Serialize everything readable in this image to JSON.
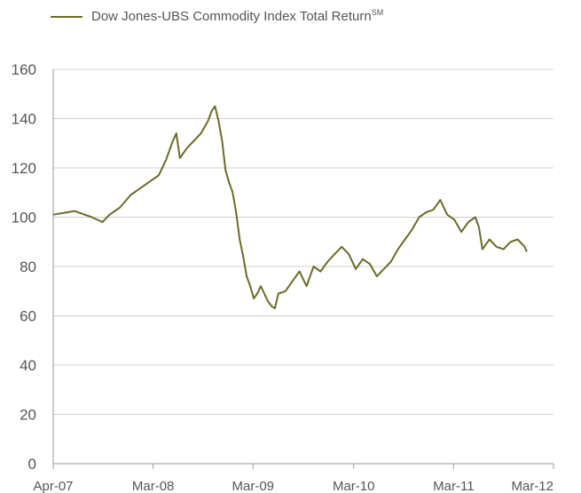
{
  "chart_data": {
    "type": "line",
    "legend": {
      "placement": "top-left",
      "label": "Dow Jones-UBS Commodity Index Total Return",
      "label_superscript": "SM"
    },
    "series": [
      {
        "name": "Dow Jones-UBS Commodity Index Total Return",
        "color": "#6b6b2b",
        "points": [
          [
            0.0,
            101
          ],
          [
            0.1,
            101.5
          ],
          [
            0.2,
            102
          ],
          [
            0.3,
            102.5
          ],
          [
            0.4,
            101.5
          ],
          [
            0.55,
            100
          ],
          [
            0.7,
            98
          ],
          [
            0.8,
            101
          ],
          [
            0.95,
            104
          ],
          [
            1.1,
            109
          ],
          [
            1.3,
            113
          ],
          [
            1.5,
            117
          ],
          [
            1.6,
            123
          ],
          [
            1.7,
            131
          ],
          [
            1.75,
            134
          ],
          [
            1.8,
            124
          ],
          [
            1.9,
            128
          ],
          [
            2.0,
            131
          ],
          [
            2.1,
            134
          ],
          [
            2.2,
            139
          ],
          [
            2.25,
            143
          ],
          [
            2.3,
            145
          ],
          [
            2.35,
            139
          ],
          [
            2.4,
            131
          ],
          [
            2.45,
            119
          ],
          [
            2.5,
            114
          ],
          [
            2.55,
            110
          ],
          [
            2.6,
            102
          ],
          [
            2.65,
            91
          ],
          [
            2.7,
            84
          ],
          [
            2.75,
            76
          ],
          [
            2.8,
            72
          ],
          [
            2.85,
            67
          ],
          [
            2.9,
            69
          ],
          [
            2.95,
            72
          ],
          [
            3.0,
            69
          ],
          [
            3.05,
            66
          ],
          [
            3.1,
            64
          ],
          [
            3.15,
            63
          ],
          [
            3.2,
            69
          ],
          [
            3.3,
            70
          ],
          [
            3.4,
            74
          ],
          [
            3.5,
            78
          ],
          [
            3.6,
            72
          ],
          [
            3.7,
            80
          ],
          [
            3.8,
            78
          ],
          [
            3.9,
            82
          ],
          [
            4.0,
            85
          ],
          [
            4.1,
            88
          ],
          [
            4.2,
            85
          ],
          [
            4.3,
            79
          ],
          [
            4.4,
            83
          ],
          [
            4.5,
            81
          ],
          [
            4.6,
            76
          ],
          [
            4.7,
            79
          ],
          [
            4.8,
            82
          ],
          [
            4.9,
            87
          ],
          [
            5.0,
            91
          ],
          [
            5.1,
            95
          ],
          [
            5.2,
            100
          ],
          [
            5.3,
            102
          ],
          [
            5.4,
            103
          ],
          [
            5.5,
            107
          ],
          [
            5.6,
            101
          ],
          [
            5.7,
            99
          ],
          [
            5.8,
            94
          ],
          [
            5.9,
            98
          ],
          [
            6.0,
            100
          ],
          [
            6.05,
            96
          ],
          [
            6.1,
            87
          ],
          [
            6.2,
            91
          ],
          [
            6.3,
            88
          ],
          [
            6.4,
            87
          ],
          [
            6.5,
            90
          ],
          [
            6.6,
            91
          ],
          [
            6.7,
            88
          ],
          [
            6.73,
            86
          ]
        ]
      }
    ],
    "x_axis": {
      "ticks": [
        {
          "value": 0.0,
          "label": "Apr-07"
        },
        {
          "value": 1.42,
          "label": "Mar-08"
        },
        {
          "value": 2.84,
          "label": "Mar-09"
        },
        {
          "value": 4.27,
          "label": "Mar-10"
        },
        {
          "value": 5.69,
          "label": "Mar-11"
        },
        {
          "value": 7.11,
          "label": "Mar-12"
        }
      ],
      "range": [
        0,
        7.11
      ]
    },
    "y_axis": {
      "range": [
        0,
        160
      ],
      "ticks": [
        0,
        20,
        40,
        60,
        80,
        100,
        120,
        140,
        160
      ]
    },
    "grid": {
      "horizontal": true,
      "vertical": false,
      "color": "#cfcfcf"
    },
    "axis_color": "#999999"
  }
}
